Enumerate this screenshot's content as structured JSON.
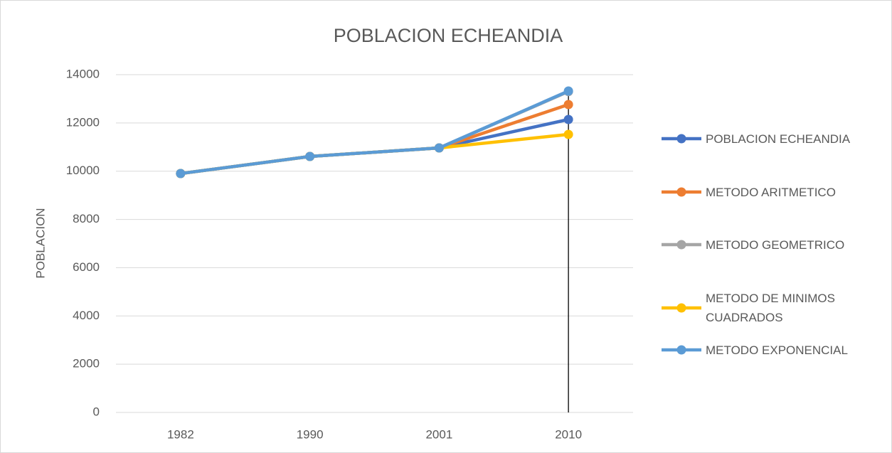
{
  "chart_data": {
    "type": "line",
    "title": "POBLACION ECHEANDIA",
    "y_label": "POBLACION",
    "categories": [
      "1982",
      "1990",
      "2001",
      "2010"
    ],
    "series": [
      {
        "name": "POBLACION ECHEANDIA",
        "color": "#4472c4",
        "values": [
          9903,
          10610,
          10964,
          12143
        ]
      },
      {
        "name": "METODO ARITMETICO",
        "color": "#ed7d31",
        "values": [
          9903,
          10610,
          10964,
          12762
        ]
      },
      {
        "name": "METODO GEOMETRICO",
        "color": "#a5a5a5",
        "values": [
          9903,
          10610,
          10964,
          13300
        ]
      },
      {
        "name": "METODO DE MINIMOS CUADRADOS",
        "color": "#ffc000",
        "values": [
          9903,
          10610,
          10964,
          11524
        ]
      },
      {
        "name": "METODO EXPONENCIAL",
        "color": "#5b9bd5",
        "values": [
          9903,
          10610,
          10964,
          13322
        ]
      }
    ],
    "ylim": [
      0,
      14000
    ],
    "yticks": [
      0,
      2000,
      4000,
      6000,
      8000,
      10000,
      12000,
      14000
    ],
    "grid": true,
    "legend": "right"
  }
}
